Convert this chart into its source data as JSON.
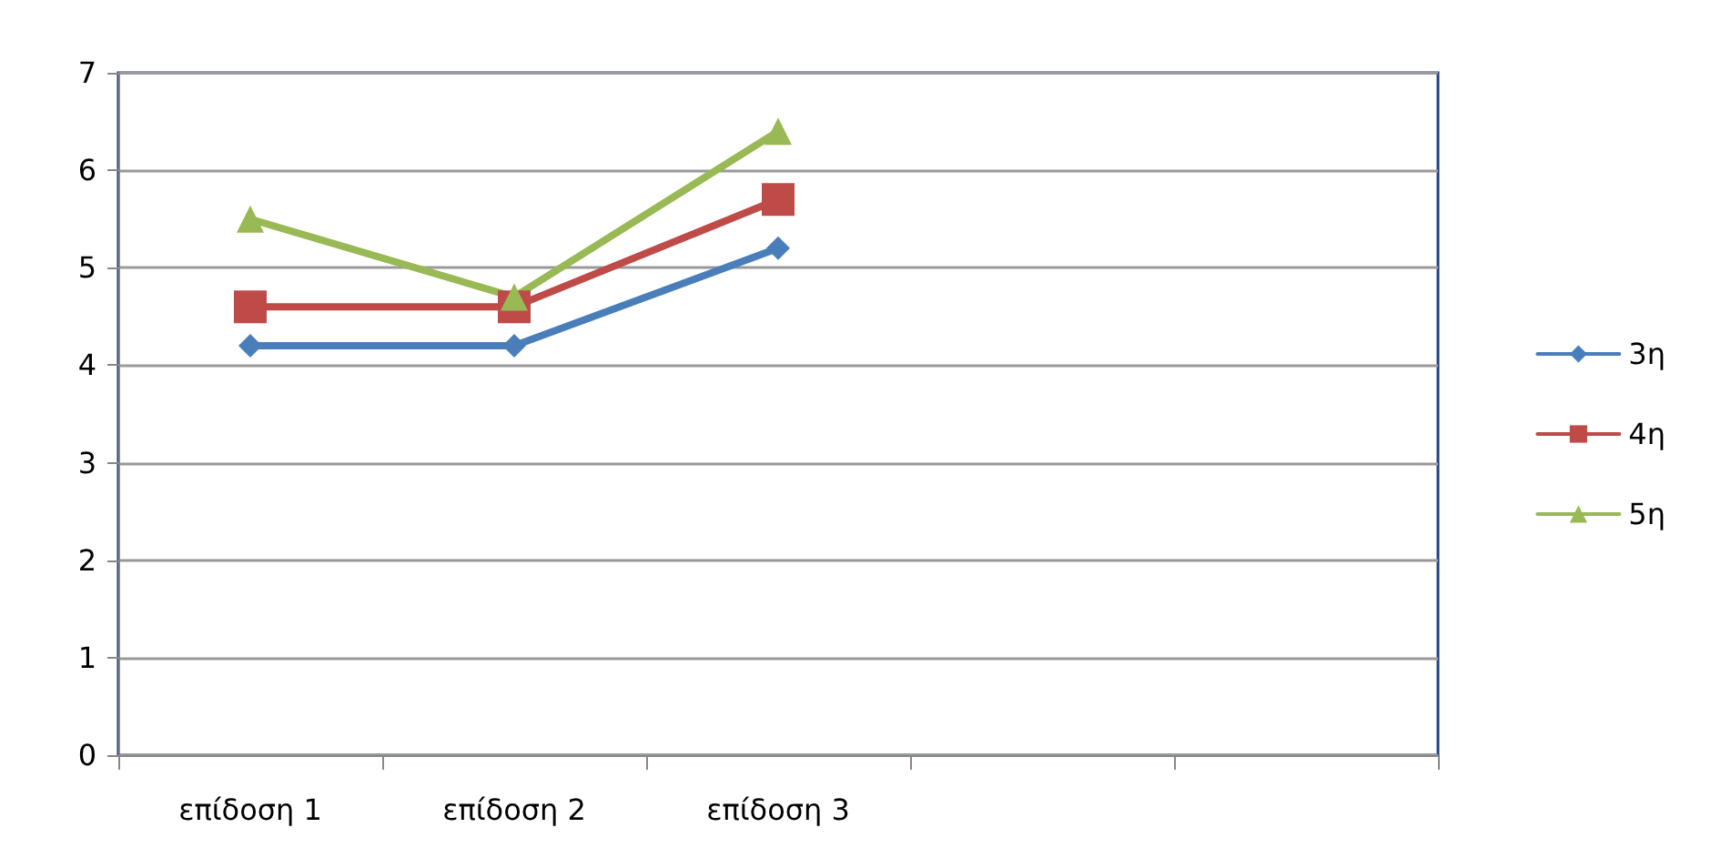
{
  "chart_data": {
    "type": "line",
    "categories": [
      "επίδοση 1",
      "επίδοση 2",
      "επίδοση 3",
      null,
      null
    ],
    "series": [
      {
        "name": "3η",
        "color": "#4a7ebb",
        "marker": "diamond",
        "values": [
          4.2,
          4.2,
          5.2,
          null,
          null
        ]
      },
      {
        "name": "4η",
        "color": "#be4b48",
        "marker": "square",
        "values": [
          4.6,
          4.6,
          5.7,
          null,
          null
        ]
      },
      {
        "name": "5η",
        "color": "#98b954",
        "marker": "triangle",
        "values": [
          5.5,
          4.7,
          6.4,
          null,
          null
        ]
      }
    ],
    "ylim": [
      0,
      7
    ],
    "yticks": [
      0,
      1,
      2,
      3,
      4,
      5,
      6,
      7
    ],
    "grid": "y",
    "legend": "right"
  }
}
